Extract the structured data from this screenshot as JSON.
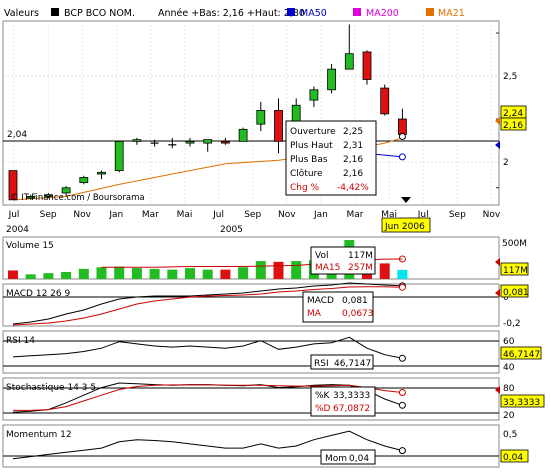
{
  "header": {
    "valeurs_label": "Valeurs",
    "instrument": "BCP BCO NOM.",
    "range_text": "Année +Bas: 2,16 +Haut: 2,80",
    "legend": [
      {
        "label": "MA50",
        "color": "#0000cc"
      },
      {
        "label": "MA200",
        "color": "#e000e0"
      },
      {
        "label": "MA21",
        "color": "#e07000"
      }
    ]
  },
  "watermark": "© IT-Finance.com / Boursorama",
  "ref_line": {
    "value": 2.04,
    "label": "2,04"
  },
  "price_badges": {
    "top": "2,24",
    "bottom": "2,16"
  },
  "x_axis": {
    "months": [
      "Jul",
      "Sep",
      "Nov",
      "Jan",
      "Mar",
      "Mai",
      "Jul",
      "Sep",
      "Nov",
      "Jan",
      "Mar",
      "Mai",
      "Jul",
      "Sep",
      "Nov"
    ],
    "years": [
      "2004",
      "2005"
    ],
    "cursor_label": "Jun 2006"
  },
  "tooltip": {
    "rows": [
      {
        "label": "Ouverture",
        "value": "2,25"
      },
      {
        "label": "Plus Haut",
        "value": "2,31"
      },
      {
        "label": "Plus Bas",
        "value": "2,16"
      },
      {
        "label": "Clôture",
        "value": "2,16"
      },
      {
        "label": "Chg %",
        "value": "-4,42%"
      }
    ]
  },
  "panels": {
    "volume": {
      "title": "Volume 15",
      "axis_top": "500M",
      "badge": "117M",
      "info": [
        {
          "label": "Vol",
          "value": "117M"
        },
        {
          "label": "MA15",
          "value": "257M"
        }
      ]
    },
    "macd": {
      "title": "MACD 12 26 9",
      "axis_top": "0",
      "axis_bottom": "-0,2",
      "badge": "0,081",
      "info": [
        {
          "label": "MACD",
          "value": "0,081"
        },
        {
          "label": "MA",
          "value": "0,0673"
        }
      ]
    },
    "rsi": {
      "title": "RSI 14",
      "axis_top": "60",
      "axis_bottom": "40",
      "badge": "46,7147",
      "info": [
        {
          "label": "RSI",
          "value": "46,7147"
        }
      ]
    },
    "stoch": {
      "title": "Stochastique 14 3 5",
      "axis_top": "80",
      "axis_bottom": "20",
      "badge": "33,3333",
      "info": [
        {
          "label": "%K",
          "value": "33,3333"
        },
        {
          "label": "%D",
          "value": "67,0872"
        }
      ]
    },
    "momentum": {
      "title": "Momentum 12",
      "axis_top": "0,5",
      "axis_mid": "0",
      "badge": "0,04",
      "info": [
        {
          "label": "Mom",
          "value": "0,04"
        }
      ]
    }
  },
  "chart_data": {
    "type": "candlestick",
    "y_ticks": [
      {
        "value": 2.5,
        "label": "2,5"
      },
      {
        "value": 2.0,
        "label": "2"
      }
    ],
    "ylim": [
      1.75,
      2.82
    ],
    "candles": [
      {
        "x": 0,
        "o": 1.95,
        "h": 1.95,
        "l": 1.78,
        "c": 1.78
      },
      {
        "x": 1,
        "o": 1.79,
        "h": 1.81,
        "l": 1.78,
        "c": 1.8
      },
      {
        "x": 2,
        "o": 1.8,
        "h": 1.82,
        "l": 1.79,
        "c": 1.81
      },
      {
        "x": 3,
        "o": 1.82,
        "h": 1.86,
        "l": 1.8,
        "c": 1.85
      },
      {
        "x": 4,
        "o": 1.88,
        "h": 1.92,
        "l": 1.87,
        "c": 1.91
      },
      {
        "x": 5,
        "o": 1.93,
        "h": 1.95,
        "l": 1.9,
        "c": 1.94
      },
      {
        "x": 6,
        "o": 1.95,
        "h": 2.12,
        "l": 1.94,
        "c": 2.12
      },
      {
        "x": 7,
        "o": 2.12,
        "h": 2.14,
        "l": 2.1,
        "c": 2.13
      },
      {
        "x": 8,
        "o": 2.11,
        "h": 2.13,
        "l": 2.09,
        "c": 2.11
      },
      {
        "x": 9,
        "o": 2.1,
        "h": 2.14,
        "l": 2.08,
        "c": 2.1
      },
      {
        "x": 10,
        "o": 2.11,
        "h": 2.14,
        "l": 2.09,
        "c": 2.12
      },
      {
        "x": 11,
        "o": 2.11,
        "h": 2.13,
        "l": 2.06,
        "c": 2.13
      },
      {
        "x": 12,
        "o": 2.12,
        "h": 2.14,
        "l": 2.1,
        "c": 2.11
      },
      {
        "x": 13,
        "o": 2.12,
        "h": 2.2,
        "l": 2.12,
        "c": 2.19
      },
      {
        "x": 14,
        "o": 2.22,
        "h": 2.35,
        "l": 2.18,
        "c": 2.3
      },
      {
        "x": 15,
        "o": 2.3,
        "h": 2.37,
        "l": 2.05,
        "c": 2.12
      },
      {
        "x": 16,
        "o": 2.12,
        "h": 2.37,
        "l": 2.07,
        "c": 2.33
      },
      {
        "x": 17,
        "o": 2.36,
        "h": 2.44,
        "l": 2.32,
        "c": 2.42
      },
      {
        "x": 18,
        "o": 2.42,
        "h": 2.57,
        "l": 2.4,
        "c": 2.54
      },
      {
        "x": 19,
        "o": 2.54,
        "h": 2.8,
        "l": 2.55,
        "c": 2.63
      },
      {
        "x": 20,
        "o": 2.64,
        "h": 2.65,
        "l": 2.45,
        "c": 2.48
      },
      {
        "x": 21,
        "o": 2.43,
        "h": 2.45,
        "l": 2.27,
        "c": 2.28
      },
      {
        "x": 22,
        "o": 2.25,
        "h": 2.31,
        "l": 2.16,
        "c": 2.16
      }
    ],
    "ma21": [
      {
        "x": 0,
        "y": 1.78
      },
      {
        "x": 3,
        "y": 1.8
      },
      {
        "x": 6,
        "y": 1.87
      },
      {
        "x": 9,
        "y": 1.93
      },
      {
        "x": 12,
        "y": 1.99
      },
      {
        "x": 15,
        "y": 2.01
      },
      {
        "x": 18,
        "y": 2.05
      },
      {
        "x": 21,
        "y": 2.11
      },
      {
        "x": 22,
        "y": 2.14
      }
    ],
    "ma50": [
      {
        "x": 19,
        "y": 2.06
      },
      {
        "x": 22,
        "y": 2.03
      }
    ],
    "volume": {
      "values": [
        110,
        60,
        75,
        90,
        130,
        150,
        160,
        140,
        130,
        120,
        140,
        120,
        120,
        150,
        230,
        220,
        230,
        240,
        300,
        530,
        220,
        200,
        117
      ],
      "ma15": [
        150,
        150,
        150,
        150,
        155,
        160,
        160,
        160,
        160,
        165,
        170,
        175,
        190,
        210,
        230,
        245,
        255,
        257
      ],
      "ylim": [
        0,
        500
      ]
    },
    "macd": {
      "macd": [
        -0.3,
        -0.28,
        -0.25,
        -0.2,
        -0.16,
        -0.1,
        -0.05,
        -0.03,
        -0.02,
        -0.02,
        -0.02,
        -0.01,
        0.0,
        0.01,
        0.03,
        0.05,
        0.06,
        0.08,
        0.09,
        0.11,
        0.1,
        0.09,
        0.081
      ],
      "signal": [
        -0.31,
        -0.3,
        -0.29,
        -0.27,
        -0.24,
        -0.2,
        -0.15,
        -0.1,
        -0.07,
        -0.05,
        -0.03,
        -0.02,
        -0.015,
        -0.01,
        0.0,
        0.02,
        0.03,
        0.045,
        0.055,
        0.07,
        0.073,
        0.072,
        0.0673
      ],
      "ylim": [
        -0.3,
        0.08
      ]
    },
    "rsi": {
      "values": [
        48,
        49,
        50,
        51,
        53,
        56,
        62,
        60,
        58,
        57,
        58,
        57,
        56,
        58,
        63,
        55,
        57,
        60,
        61,
        66,
        56,
        50,
        46.7147
      ],
      "ylim": [
        35,
        70
      ]
    },
    "stoch": {
      "k": [
        15,
        18,
        22,
        40,
        60,
        80,
        92,
        90,
        88,
        86,
        88,
        88,
        86,
        85,
        88,
        80,
        82,
        86,
        88,
        86,
        72,
        50,
        33.3333
      ],
      "d": [
        20,
        20,
        22,
        30,
        45,
        60,
        75,
        83,
        86,
        87,
        87,
        87,
        86,
        86,
        86,
        85,
        84,
        84,
        85,
        86,
        80,
        72,
        67.0872
      ],
      "ylim": [
        0,
        100
      ]
    },
    "momentum": {
      "values": [
        -0.15,
        -0.1,
        -0.05,
        0.0,
        0.05,
        0.1,
        0.25,
        0.3,
        0.28,
        0.25,
        0.2,
        0.15,
        0.1,
        0.1,
        0.2,
        0.1,
        0.15,
        0.3,
        0.4,
        0.5,
        0.3,
        0.15,
        0.04
      ],
      "ylim": [
        -0.3,
        0.6
      ]
    }
  }
}
